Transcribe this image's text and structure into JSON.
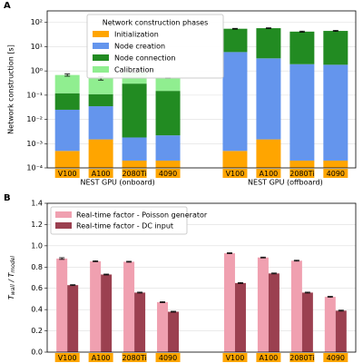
{
  "chart_data": [
    {
      "type": "stacked_bar_log",
      "panel_label": "A",
      "ylabel": "Network construction [s]",
      "legend_title": "Network construction phases",
      "categories": [
        "V100",
        "A100",
        "2080Ti",
        "4090",
        "V100",
        "A100",
        "2080Ti",
        "4090"
      ],
      "groups": [
        "NEST GPU (onboard)",
        "NEST GPU (offboard)"
      ],
      "log_scale": true,
      "grid": true,
      "legend": "upper left",
      "ylim": [
        0.0001,
        300
      ],
      "yticks": [
        {
          "value": 0.0001,
          "label": "10⁻⁴"
        },
        {
          "value": 0.001,
          "label": "10⁻³"
        },
        {
          "value": 0.01,
          "label": "10⁻²"
        },
        {
          "value": 0.1,
          "label": "10⁻¹"
        },
        {
          "value": 1,
          "label": "10⁰"
        },
        {
          "value": 10,
          "label": "10¹"
        },
        {
          "value": 100,
          "label": "10²"
        }
      ],
      "series": [
        {
          "name": "Initialization",
          "color": "#ffa500",
          "values": [
            0.0005,
            0.0015,
            0.0002,
            0.0002,
            0.0005,
            0.0015,
            0.0002,
            0.0002
          ]
        },
        {
          "name": "Node creation",
          "color": "#6495ed",
          "values": [
            0.0245,
            0.0335,
            0.0016,
            0.002,
            6,
            3.3,
            1.9,
            1.8
          ]
        },
        {
          "name": "Node connection",
          "color": "#228b22",
          "values": [
            0.095,
            0.075,
            0.298,
            0.148,
            49,
            54.7,
            40,
            43
          ]
        },
        {
          "name": "Calibration",
          "color": "#90ee90",
          "values": [
            0.56,
            0.39,
            0.58,
            0.37,
            0,
            0,
            0,
            0
          ],
          "errors": [
            0.07,
            0.08,
            0.03,
            0.02,
            2,
            2,
            2,
            2
          ]
        }
      ]
    },
    {
      "type": "grouped_bar",
      "panel_label": "B",
      "ylabel_parts": [
        "T",
        "wall",
        " / T",
        "model"
      ],
      "categories": [
        "V100",
        "A100",
        "2080Ti",
        "4090",
        "V100",
        "A100",
        "2080Ti",
        "4090"
      ],
      "grid": true,
      "legend": "upper left",
      "ylim": [
        0,
        1.4
      ],
      "yticks": [
        {
          "value": 0,
          "label": "0.0"
        },
        0.2,
        0.4,
        0.6,
        0.8,
        {
          "value": 1,
          "label": "1.0"
        },
        1.2,
        1.4
      ],
      "series": [
        {
          "name": "Real-time factor - Poisson generator",
          "color": "#f0a0b0",
          "values": [
            0.88,
            0.855,
            0.85,
            0.47,
            0.93,
            0.89,
            0.86,
            0.52
          ],
          "errors": [
            0.008,
            0.004,
            0.004,
            0.004,
            0.004,
            0.004,
            0.004,
            0.004
          ]
        },
        {
          "name": "Real-time factor - DC input",
          "color": "#9b4050",
          "values": [
            0.63,
            0.73,
            0.56,
            0.38,
            0.65,
            0.74,
            0.56,
            0.39
          ],
          "errors": [
            0.004,
            0.004,
            0.004,
            0.004,
            0.004,
            0.004,
            0.004,
            0.004
          ]
        }
      ]
    }
  ]
}
